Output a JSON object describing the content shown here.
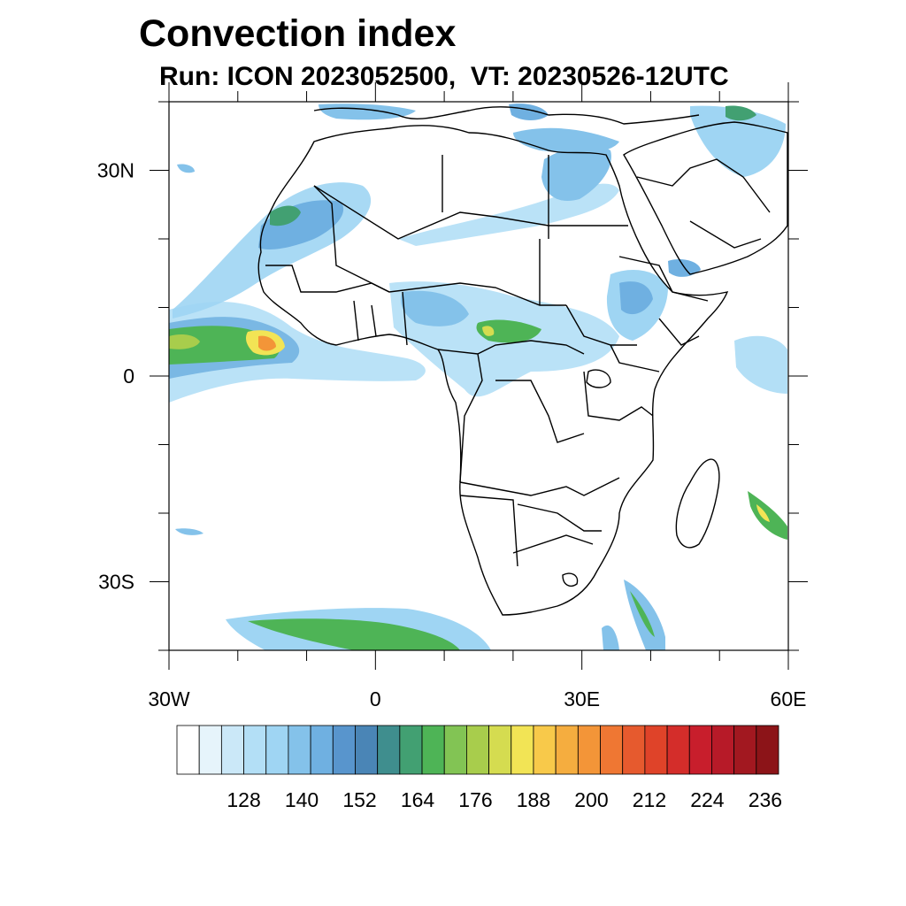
{
  "title": "Convection index",
  "subtitle": "Run: ICON 2023052500,  VT: 20230526-12UTC",
  "map": {
    "projection": "equirectangular",
    "lon_range": [
      -30,
      60
    ],
    "lat_range": [
      -40,
      40
    ],
    "x_ticks": [
      {
        "lon": -30,
        "label": "30W"
      },
      {
        "lon": 0,
        "label": "0"
      },
      {
        "lon": 30,
        "label": "30E"
      },
      {
        "lon": 60,
        "label": "60E"
      }
    ],
    "y_ticks": [
      {
        "lat": 30,
        "label": "30N"
      },
      {
        "lat": 0,
        "label": "0"
      },
      {
        "lat": -30,
        "label": "30S"
      }
    ],
    "regions_shown": [
      "Africa",
      "Arabian Peninsula",
      "Madagascar",
      "Southern Europe"
    ]
  },
  "colorbar": {
    "label_values": [
      "128",
      "140",
      "152",
      "164",
      "176",
      "188",
      "200",
      "212",
      "224",
      "236"
    ],
    "colors": [
      "#ffffff",
      "#e6f4fb",
      "#cbe8f8",
      "#b3dff6",
      "#9fd5f3",
      "#84c2ea",
      "#6fb0e1",
      "#5895cd",
      "#4a85b6",
      "#3f8e8e",
      "#42a072",
      "#4eb456",
      "#82c454",
      "#a8cd4c",
      "#d5dc50",
      "#f2e455",
      "#f8c94a",
      "#f5ad3f",
      "#f39538",
      "#ef7733",
      "#e65a2e",
      "#df4329",
      "#d42d2a",
      "#c81e2c",
      "#b71a28",
      "#a21820",
      "#8c1418"
    ]
  }
}
